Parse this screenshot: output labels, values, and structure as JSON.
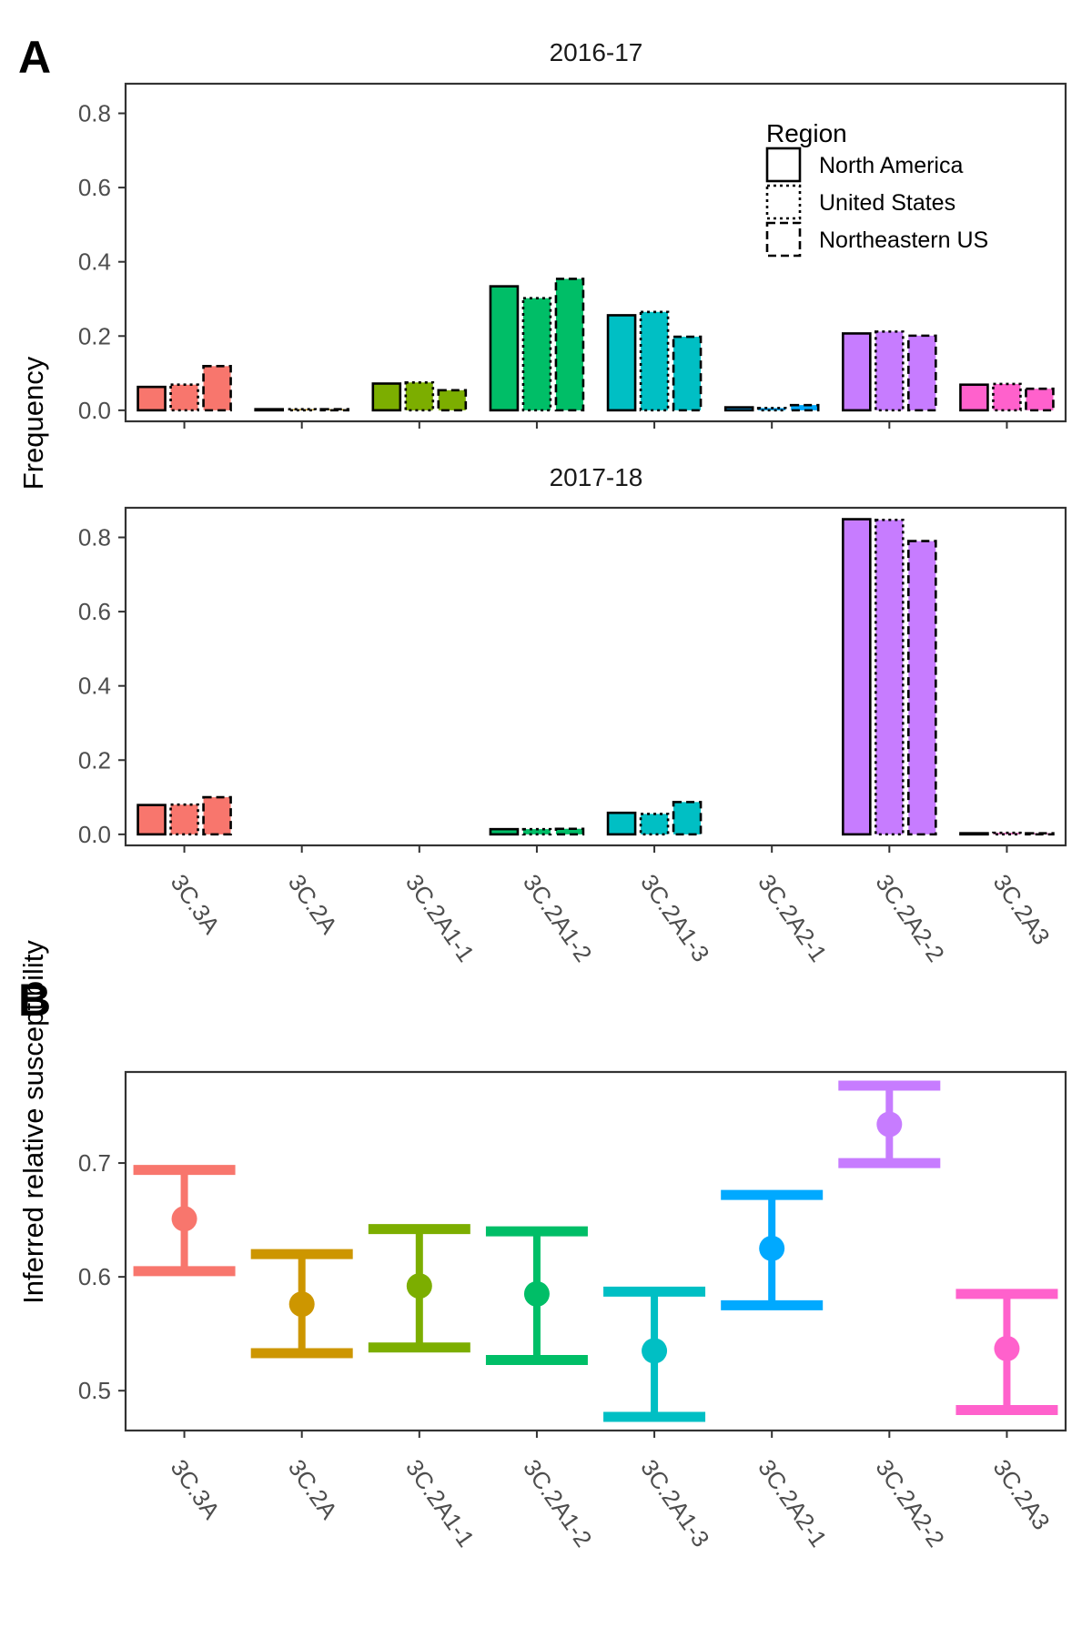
{
  "figure": {
    "panel_labels": [
      "A",
      "B"
    ],
    "panel_a_ylabel": "Frequency",
    "panel_b_ylabel": "Inferred relative susceptibility"
  },
  "chart_data": [
    {
      "type": "bar",
      "title": "2016-17",
      "xlabel": "",
      "ylabel": "Frequency",
      "categories": [
        "3C.3A",
        "3C.2A",
        "3C.2A1-1",
        "3C.2A1-2",
        "3C.2A1-3",
        "3C.2A2-1",
        "3C.2A2-2",
        "3C.2A3"
      ],
      "ylim": [
        0,
        0.85
      ],
      "yticks": [
        0.0,
        0.2,
        0.4,
        0.6,
        0.8
      ],
      "ytick_labels": [
        "0.0",
        "0.2",
        "0.4",
        "0.6",
        "0.8"
      ],
      "grid": false,
      "legend": {
        "title": "Region",
        "placement": "top-right inside"
      },
      "series": [
        {
          "name": "North America",
          "linestyle": "solid",
          "values": [
            0.063,
            0.001,
            0.072,
            0.334,
            0.256,
            0.008,
            0.207,
            0.069
          ]
        },
        {
          "name": "United States",
          "linestyle": "dotted",
          "values": [
            0.069,
            0.001,
            0.075,
            0.302,
            0.265,
            0.006,
            0.212,
            0.071
          ]
        },
        {
          "name": "Northeastern US",
          "linestyle": "dashed",
          "values": [
            0.119,
            0.002,
            0.054,
            0.354,
            0.198,
            0.014,
            0.201,
            0.058
          ]
        }
      ],
      "colors": [
        "#F8766D",
        "#CD9600",
        "#7CAE00",
        "#00BE67",
        "#00BFC4",
        "#00A9FF",
        "#C77CFF",
        "#FF61CC"
      ]
    },
    {
      "type": "bar",
      "title": "2017-18",
      "xlabel": "",
      "ylabel": "Frequency",
      "categories": [
        "3C.3A",
        "3C.2A",
        "3C.2A1-1",
        "3C.2A1-2",
        "3C.2A1-3",
        "3C.2A2-1",
        "3C.2A2-2",
        "3C.2A3"
      ],
      "ylim": [
        0,
        0.85
      ],
      "yticks": [
        0.0,
        0.2,
        0.4,
        0.6,
        0.8
      ],
      "ytick_labels": [
        "0.0",
        "0.2",
        "0.4",
        "0.6",
        "0.8"
      ],
      "grid": false,
      "series": [
        {
          "name": "North America",
          "linestyle": "solid",
          "values": [
            0.079,
            0.0,
            0.0,
            0.014,
            0.058,
            0.0,
            0.849,
            0.003
          ]
        },
        {
          "name": "United States",
          "linestyle": "dotted",
          "values": [
            0.08,
            0.0,
            0.0,
            0.014,
            0.055,
            0.0,
            0.847,
            0.004
          ]
        },
        {
          "name": "Northeastern US",
          "linestyle": "dashed",
          "values": [
            0.1,
            0.0,
            0.0,
            0.015,
            0.087,
            0.0,
            0.79,
            0.003
          ]
        }
      ],
      "colors": [
        "#F8766D",
        "#CD9600",
        "#7CAE00",
        "#00BE67",
        "#00BFC4",
        "#00A9FF",
        "#C77CFF",
        "#FF61CC"
      ]
    },
    {
      "type": "scatter",
      "title": "",
      "xlabel": "",
      "ylabel": "Inferred relative susceptibility",
      "categories": [
        "3C.3A",
        "3C.2A",
        "3C.2A1-1",
        "3C.2A1-2",
        "3C.2A1-3",
        "3C.2A2-1",
        "3C.2A2-2",
        "3C.2A3"
      ],
      "ylim": [
        0.465,
        0.78
      ],
      "yticks": [
        0.5,
        0.6,
        0.7
      ],
      "ytick_labels": [
        "0.5",
        "0.6",
        "0.7"
      ],
      "grid": false,
      "series": [
        {
          "values": [
            0.651,
            0.576,
            0.592,
            0.585,
            0.535,
            0.625,
            0.734,
            0.537
          ],
          "lower": [
            0.605,
            0.533,
            0.538,
            0.527,
            0.477,
            0.575,
            0.7,
            0.483
          ],
          "upper": [
            0.694,
            0.62,
            0.642,
            0.64,
            0.587,
            0.672,
            0.768,
            0.585
          ]
        }
      ],
      "colors": [
        "#F8766D",
        "#CD9600",
        "#7CAE00",
        "#00BE67",
        "#00BFC4",
        "#00A9FF",
        "#C77CFF",
        "#FF61CC"
      ]
    }
  ]
}
